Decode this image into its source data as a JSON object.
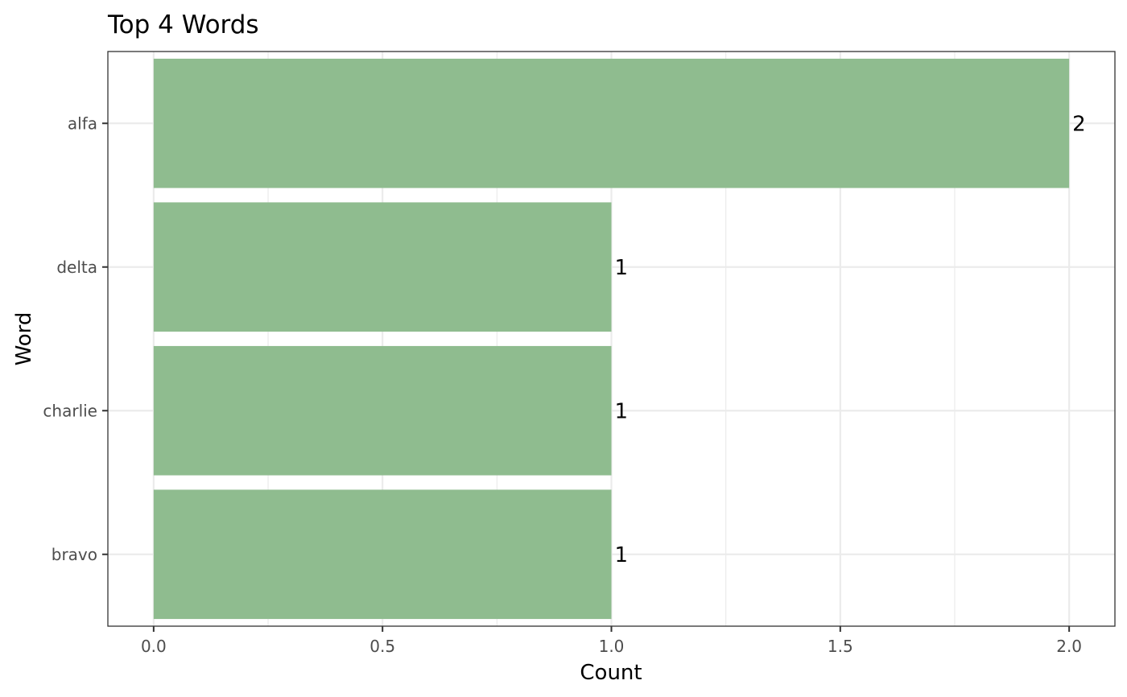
{
  "chart_data": {
    "type": "bar",
    "orientation": "horizontal",
    "title": "Top 4 Words",
    "xlabel": "Count",
    "ylabel": "Word",
    "categories": [
      "alfa",
      "delta",
      "charlie",
      "bravo"
    ],
    "values": [
      2,
      1,
      1,
      1
    ],
    "data_labels": [
      "2",
      "1",
      "1",
      "1"
    ],
    "xlim": [
      -0.1,
      2.1
    ],
    "x_ticks": [
      0.0,
      0.5,
      1.0,
      1.5,
      2.0
    ],
    "x_tick_labels": [
      "0.0",
      "0.5",
      "1.0",
      "1.5",
      "2.0"
    ],
    "grid": true,
    "legend": "none",
    "colors": {
      "bar": "#8fbc8f",
      "grid": "#ebebeb",
      "panel_border": "#333333",
      "axis_text": "#4d4d4d",
      "label_text": "#000000"
    }
  }
}
